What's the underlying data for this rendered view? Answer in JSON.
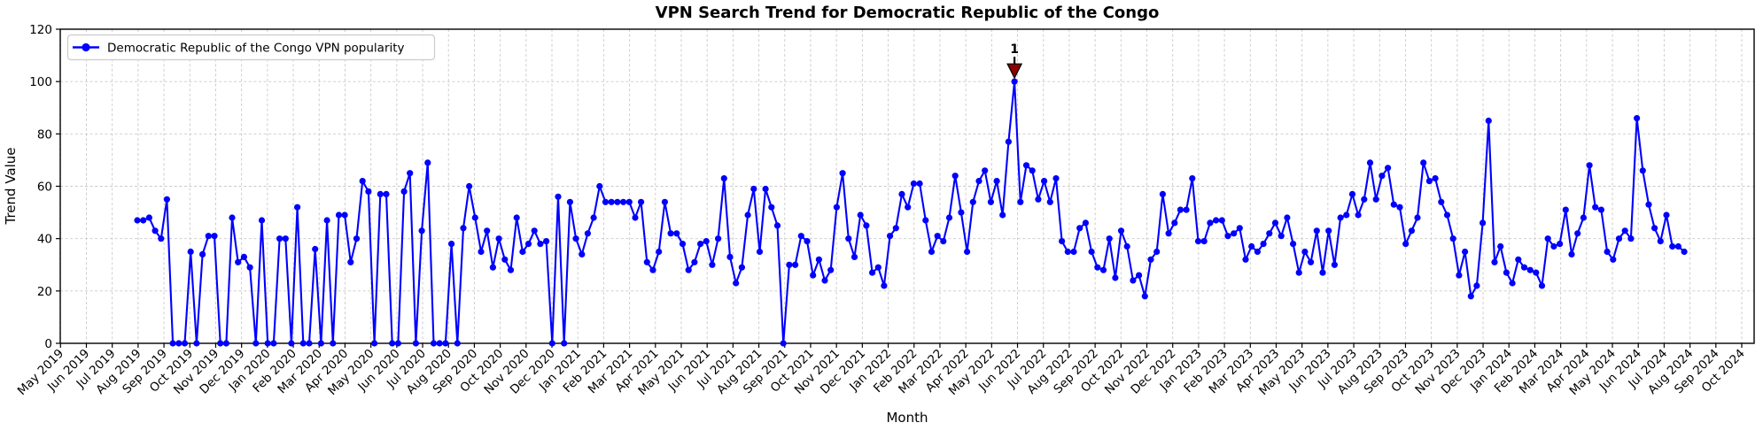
{
  "title": "VPN Search Trend for Democratic Republic of the Congo",
  "xlabel": "Month",
  "ylabel": "Trend Value",
  "legend": {
    "label": "Democratic Republic of the Congo VPN popularity"
  },
  "annotation": {
    "label": "1",
    "value": 100
  },
  "colors": {
    "line": "#0000ff",
    "marker": "#0000ff",
    "annotation": "#8b0000",
    "annotation_edge": "#000000",
    "grid": "#c9c9c9",
    "axis": "#000000",
    "legend_border": "#cccccc"
  },
  "chart_data": {
    "type": "line",
    "title": "VPN Search Trend for Democratic Republic of the Congo",
    "xlabel": "Month",
    "ylabel": "Trend Value",
    "ylim": [
      0,
      120
    ],
    "y_ticks": [
      0,
      20,
      40,
      60,
      80,
      100,
      120
    ],
    "grid": "dashed",
    "legend_position": "upper-left",
    "x_tick_labels": [
      "May 2019",
      "Jun 2019",
      "Jul 2019",
      "Aug 2019",
      "Sep 2019",
      "Oct 2019",
      "Nov 2019",
      "Dec 2019",
      "Jan 2020",
      "Feb 2020",
      "Mar 2020",
      "Apr 2020",
      "May 2020",
      "Jun 2020",
      "Jul 2020",
      "Aug 2020",
      "Sep 2020",
      "Oct 2020",
      "Nov 2020",
      "Dec 2020",
      "Jan 2021",
      "Feb 2021",
      "Mar 2021",
      "Apr 2021",
      "May 2021",
      "Jun 2021",
      "Jul 2021",
      "Aug 2021",
      "Sep 2021",
      "Oct 2021",
      "Nov 2021",
      "Dec 2021",
      "Jan 2022",
      "Feb 2022",
      "Mar 2022",
      "Apr 2022",
      "May 2022",
      "Jun 2022",
      "Jul 2022",
      "Aug 2022",
      "Sep 2022",
      "Oct 2022",
      "Nov 2022",
      "Dec 2022",
      "Jan 2023",
      "Feb 2023",
      "Mar 2023",
      "Apr 2023",
      "May 2023",
      "Jun 2023",
      "Jul 2023",
      "Aug 2023",
      "Sep 2023",
      "Oct 2023",
      "Nov 2023",
      "Dec 2023",
      "Jan 2024",
      "Feb 2024",
      "Mar 2024",
      "Apr 2024",
      "May 2024",
      "Jun 2024",
      "Jul 2024",
      "Aug 2024",
      "Sep 2024",
      "Oct 2024"
    ],
    "series": [
      {
        "name": "Democratic Republic of the Congo VPN popularity",
        "interval": "weekly",
        "start_label": "Aug 2019",
        "end_label": "Jul 2024",
        "annotated_max": {
          "label": "1",
          "value": 100,
          "near_label": "Jun 2022"
        },
        "values": [
          47,
          47,
          48,
          43,
          40,
          55,
          0,
          0,
          0,
          35,
          0,
          34,
          41,
          41,
          0,
          0,
          48,
          31,
          33,
          29,
          0,
          47,
          0,
          0,
          40,
          40,
          0,
          52,
          0,
          0,
          36,
          0,
          47,
          0,
          49,
          49,
          31,
          40,
          62,
          58,
          0,
          57,
          57,
          0,
          0,
          58,
          65,
          0,
          43,
          69,
          0,
          0,
          0,
          38,
          0,
          44,
          60,
          48,
          35,
          43,
          29,
          40,
          32,
          28,
          48,
          35,
          38,
          43,
          38,
          39,
          0,
          56,
          0,
          54,
          40,
          34,
          42,
          48,
          60,
          54,
          54,
          54,
          54,
          54,
          48,
          54,
          31,
          28,
          35,
          54,
          42,
          42,
          38,
          28,
          31,
          38,
          39,
          30,
          40,
          63,
          33,
          23,
          29,
          49,
          59,
          35,
          59,
          52,
          45,
          0,
          30,
          30,
          41,
          39,
          26,
          32,
          24,
          28,
          52,
          65,
          40,
          33,
          49,
          45,
          27,
          29,
          22,
          41,
          44,
          57,
          52,
          61,
          61,
          47,
          35,
          41,
          39,
          48,
          64,
          50,
          35,
          54,
          62,
          66,
          54,
          62,
          49,
          77,
          100,
          54,
          68,
          66,
          55,
          62,
          54,
          63,
          39,
          35,
          35,
          44,
          46,
          35,
          29,
          28,
          40,
          25,
          43,
          37,
          24,
          26,
          18,
          32,
          35,
          57,
          42,
          46,
          51,
          51,
          63,
          39,
          39,
          46,
          47,
          47,
          41,
          42,
          44,
          32,
          37,
          35,
          38,
          42,
          46,
          41,
          48,
          38,
          27,
          35,
          31,
          43,
          27,
          43,
          30,
          48,
          49,
          57,
          49,
          55,
          69,
          55,
          64,
          67,
          53,
          52,
          38,
          43,
          48,
          69,
          62,
          63,
          54,
          49,
          40,
          26,
          35,
          18,
          22,
          46,
          85,
          31,
          37,
          27,
          23,
          32,
          29,
          28,
          27,
          22,
          40,
          37,
          38,
          51,
          34,
          42,
          48,
          68,
          52,
          51,
          35,
          32,
          40,
          43,
          40,
          86,
          66,
          53,
          44,
          39,
          49,
          37,
          37,
          35
        ]
      }
    ]
  }
}
